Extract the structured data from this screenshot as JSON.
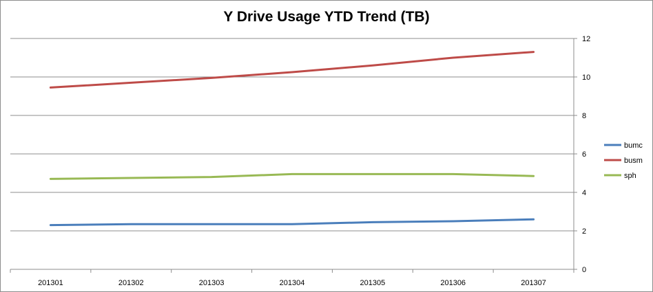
{
  "chart_data": {
    "type": "line",
    "title": "Y Drive Usage YTD Trend (TB)",
    "xlabel": "",
    "ylabel": "",
    "categories": [
      "201301",
      "201302",
      "201303",
      "201304",
      "201305",
      "201306",
      "201307"
    ],
    "ylim": [
      0,
      12
    ],
    "yticks": [
      0,
      2,
      4,
      6,
      8,
      10,
      12
    ],
    "y_axis_side": "right",
    "grid": "horizontal",
    "legend_position": "right",
    "series": [
      {
        "name": "bumc",
        "color": "#4a7ebb",
        "values": [
          2.3,
          2.35,
          2.35,
          2.35,
          2.45,
          2.5,
          2.6
        ]
      },
      {
        "name": "busm",
        "color": "#be4b48",
        "values": [
          9.45,
          9.7,
          9.95,
          10.25,
          10.6,
          11.0,
          11.3
        ]
      },
      {
        "name": "sph",
        "color": "#98b954",
        "values": [
          4.7,
          4.75,
          4.8,
          4.95,
          4.95,
          4.95,
          4.85
        ]
      }
    ]
  }
}
